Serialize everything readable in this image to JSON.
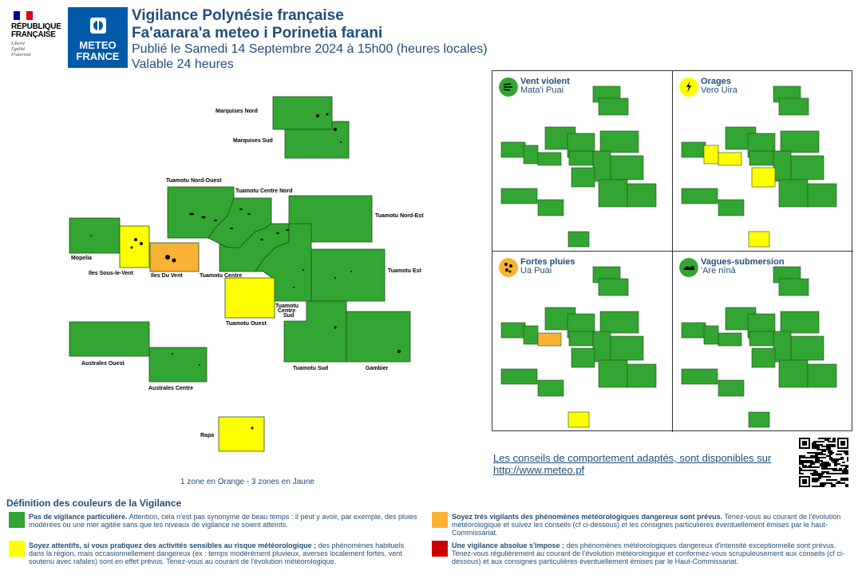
{
  "header": {
    "logo_rf": {
      "line1": "RÉPUBLIQUE",
      "line2": "FRANÇAISE",
      "motto1": "Liberté",
      "motto2": "Égalité",
      "motto3": "Fraternité"
    },
    "logo_mf": {
      "line1": "METEO",
      "line2": "FRANCE"
    },
    "title": "Vigilance Polynésie française",
    "subtitle": "Fa'aarara'a meteo i Porinetia farani",
    "published": "Publié le Samedi 14 Septembre 2024 à 15h00 (heures locales)",
    "validity": "Valable 24 heures"
  },
  "colors": {
    "green": "#33a532",
    "yellow": "#ffff00",
    "orange": "#f9b233",
    "red": "#cc0000"
  },
  "zones": {
    "marquises_nord": "Marquises Nord",
    "marquises_sud": "Marquises Sud",
    "tuamotu_nord_ouest": "Tuamotu Nord-Ouest",
    "tuamotu_centre_nord": "Tuamotu Centre Nord",
    "tuamotu_nord_est": "Tuamotu Nord-Est",
    "mopelia": "Mopelia",
    "iles_sous_le_vent": "Iles Sous-le-Vent",
    "iles_du_vent": "Iles Du Vent",
    "tuamotu_centre": "Tuamotu Centre",
    "tuamotu_est": "Tuamotu Est",
    "tuamotu_ouest": "Tuamotu Ouest",
    "tuamotu_centre_sud_1": "Tuamotu",
    "tuamotu_centre_sud_2": "Centre",
    "tuamotu_centre_sud_3": "Sud",
    "australes_ouest": "Australes Ouest",
    "australes_centre": "Australes Centre",
    "tuamotu_sud": "Tuamotu Sud",
    "gambier": "Gambier",
    "rapa": "Rapa"
  },
  "zone_levels": {
    "marquises_nord": "green",
    "marquises_sud": "green",
    "tuamotu_nord_ouest": "green",
    "tuamotu_centre_nord": "green",
    "tuamotu_nord_est": "green",
    "mopelia": "green",
    "iles_sous_le_vent": "yellow",
    "iles_du_vent": "orange",
    "tuamotu_centre": "green",
    "tuamotu_est": "green",
    "tuamotu_ouest": "yellow",
    "tuamotu_centre_sud": "green",
    "australes_ouest": "green",
    "australes_centre": "green",
    "tuamotu_sud": "green",
    "gambier": "green",
    "rapa": "yellow"
  },
  "summary": "1 zone en Orange - 3 zones en Jaune",
  "panels": [
    {
      "title": "Vent violent",
      "subtitle": "Mata'i Puai",
      "icon": "wind-icon",
      "color": "green",
      "yellow_zones": [],
      "orange_zones": []
    },
    {
      "title": "Orages",
      "subtitle": "Vero Uira",
      "icon": "lightning-icon",
      "color": "yellow",
      "yellow_zones": [
        "iles_sous_le_vent",
        "iles_du_vent",
        "tuamotu_ouest",
        "rapa"
      ],
      "orange_zones": []
    },
    {
      "title": "Fortes pluies",
      "subtitle": "Ua Puai",
      "icon": "rain-icon",
      "color": "orange",
      "yellow_zones": [
        "rapa"
      ],
      "orange_zones": [
        "iles_du_vent"
      ]
    },
    {
      "title": "Vagues-submersion",
      "subtitle": "'Are nīnā",
      "icon": "wave-icon",
      "color": "green",
      "yellow_zones": [],
      "orange_zones": []
    }
  ],
  "advice": {
    "text": "Les conseils de comportement adaptés, sont disponibles sur",
    "link": "http://www.meteo.pf"
  },
  "legend": {
    "title": "Définition des couleurs de la Vigilance",
    "items": [
      {
        "color": "green",
        "bold": "Pas de vigilance particulière.",
        "text": " Attention, cela n'est pas synonyme de beau temps : il peut y avoir, par exemple, des pluies modérées ou une mer agitée sans que les niveaux de vigilance ne soient atteints."
      },
      {
        "color": "orange",
        "bold": "Soyez très vigilants des phénomènes météorologiques dangereux sont prévus.",
        "text": " Tenez-vous au courant de l'évolution météorologique et suivez les conseils (cf ci-dessous) et les consignes particulières éventuellement émises par le haut-Commissariat."
      },
      {
        "color": "yellow",
        "bold": "Soyez attentifs, si vous pratiquez des activités sensibles au risque météorologique ;",
        "text": " des phénomènes habituels dans la région, mais occasionnellement dangereux (ex : temps modérément pluvieux, averses localement fortes, vent soutenu avec rafales) sont en effet prévus. Tenez-vous au courant de l'évolution météorologique."
      },
      {
        "color": "red",
        "bold": "Une vigilance absolue s'impose ;",
        "text": " des phénomènes météorologiques dangereux d'intensité exceptionnelle sont prévus. Tenez-vous régulièrement au courant de l'évolution météorologique et conformez-vous scrupuleusement aux conseils (cf ci-dessous) et aux consignes particulières éventuellement émises par le Haut-Commissariat."
      }
    ]
  }
}
